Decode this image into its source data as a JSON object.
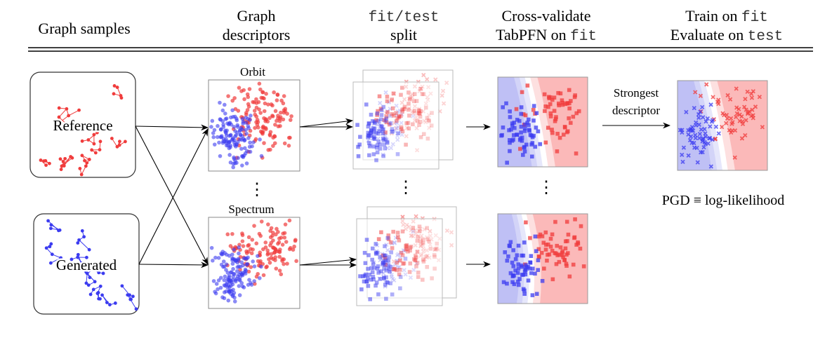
{
  "header": {
    "col1": "Graph samples",
    "col2": [
      "Graph",
      "descriptors"
    ],
    "col3": {
      "line1_mono": "fit/test",
      "line2": "split"
    },
    "col4": {
      "line1": "Cross-validate",
      "line2_text": "TabPFN on ",
      "line2_mono": "fit"
    },
    "col5": {
      "line1_text": "Train on ",
      "line1_mono": "fit",
      "line2_text": "Evaluate on ",
      "line2_mono": "test"
    }
  },
  "samples": {
    "reference": "Reference",
    "generated": "Generated"
  },
  "descriptors": {
    "top": "Orbit",
    "bottom": "Spectrum",
    "ellipsis": "⋮"
  },
  "arrow_label": [
    "Strongest",
    "descriptor"
  ],
  "result": "PGD ≡ log-likelihood",
  "colors": {
    "reference": "#f03c3c",
    "generated": "#3c3cf0",
    "bg_red": "#fbb9b9",
    "bg_blue": "#bfc0f5"
  }
}
